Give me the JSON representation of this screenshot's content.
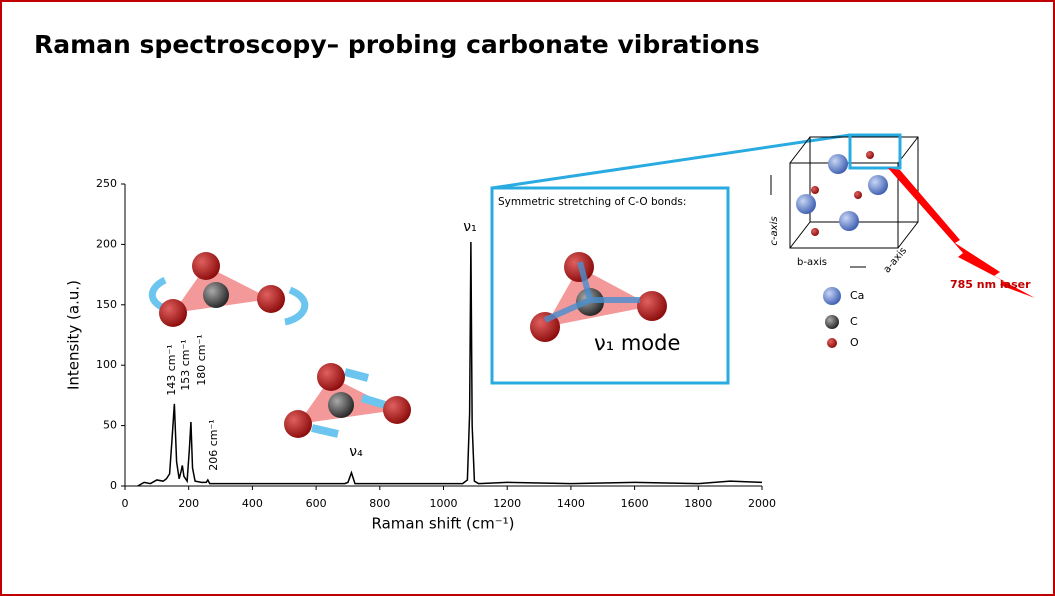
{
  "chart_data": {
    "type": "line",
    "title": "Raman spectroscopy– probing carbonate vibrations",
    "x_label": "Raman shift (cm⁻¹)",
    "y_label": "Intensity (a.u.)",
    "x": [
      40,
      60,
      80,
      100,
      120,
      130,
      140,
      148,
      155,
      162,
      170,
      176,
      180,
      185,
      195,
      202,
      207,
      212,
      220,
      240,
      255,
      260,
      266,
      300,
      400,
      500,
      600,
      690,
      700,
      711,
      722,
      800,
      900,
      1000,
      1060,
      1075,
      1082,
      1086,
      1090,
      1097,
      1110,
      1200,
      1400,
      1600,
      1800,
      1900,
      2000
    ],
    "values": [
      0,
      3,
      2,
      5,
      4,
      6,
      10,
      40,
      68,
      20,
      6,
      12,
      17,
      8,
      4,
      30,
      53,
      15,
      4,
      3,
      3,
      5,
      2,
      2,
      2,
      2,
      2,
      2,
      3,
      11,
      2,
      2,
      2,
      2,
      2,
      5,
      60,
      202,
      50,
      4,
      2,
      3,
      2,
      3,
      2,
      4,
      3
    ],
    "color": "#000000",
    "xlim": [
      0,
      2000
    ],
    "ylim": [
      0,
      250
    ],
    "xticks": [
      0,
      200,
      400,
      600,
      800,
      1000,
      1200,
      1400,
      1600,
      1800,
      2000
    ],
    "yticks": [
      0,
      50,
      100,
      150,
      200,
      250
    ],
    "annotations": [
      "ν₁",
      "143 cm⁻¹",
      "153 cm⁻¹",
      "180 cm⁻¹",
      "206 cm⁻¹",
      "ν₄"
    ]
  },
  "inset": {
    "caption": "Symmetric stretching of C-O bonds:",
    "mode": "ν₁ mode",
    "axes": [
      "c-axis",
      "b-axis",
      "a-axis"
    ],
    "legend": [
      "Ca",
      "C",
      "O"
    ],
    "laser": "785 nm laser"
  }
}
